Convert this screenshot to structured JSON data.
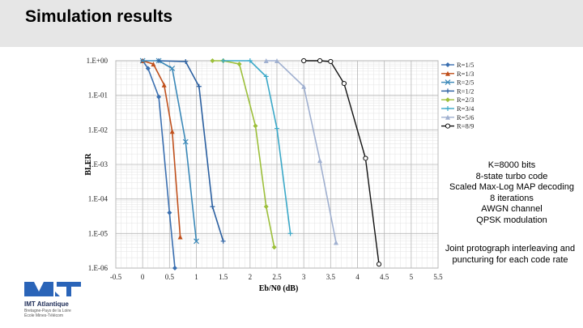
{
  "header": {
    "title": "Simulation results"
  },
  "params": [
    "K=8000 bits",
    "8-state turbo code",
    "Scaled Max-Log MAP decoding",
    "8 iterations",
    "AWGN channel",
    "QPSK modulation"
  ],
  "note": [
    "Joint protograph interleaving and",
    "puncturing for each code rate"
  ],
  "logo": {
    "name": "IMT Atlantique",
    "sub1": "Bretagne-Pays de la Loire",
    "sub2": "École Mines-Télécom"
  },
  "chart_data": {
    "type": "line",
    "xlabel": "Eb/N0 (dB)",
    "ylabel": "BLER",
    "xlim": [
      -0.5,
      5.5
    ],
    "ylim": [
      1e-06,
      1
    ],
    "yscale": "log",
    "grid": true,
    "legend": "top-right",
    "xticks": [
      "-0.5",
      "0",
      "0.5",
      "1",
      "1.5",
      "2",
      "2.5",
      "3",
      "3.5",
      "4",
      "4.5",
      "5",
      "5.5"
    ],
    "yticks": [
      "1.E+00",
      "1.E-01",
      "1.E-02",
      "1.E-03",
      "1.E-04",
      "1.E-05",
      "1.E-06"
    ],
    "series": [
      {
        "name": "R=1/5",
        "color": "#3a6fb0",
        "marker": "diamond",
        "x": [
          0,
          0.1,
          0.3,
          0.5,
          0.6
        ],
        "y": [
          1,
          0.6,
          0.09,
          4e-05,
          1e-06
        ]
      },
      {
        "name": "R=1/3",
        "color": "#c0501c",
        "marker": "triangle",
        "x": [
          0,
          0.2,
          0.4,
          0.55,
          0.7
        ],
        "y": [
          1,
          0.8,
          0.2,
          0.009,
          8e-06
        ]
      },
      {
        "name": "R=2/5",
        "color": "#3a88b8",
        "marker": "x",
        "x": [
          0,
          0.3,
          0.55,
          0.8,
          1.0
        ],
        "y": [
          1,
          1,
          0.6,
          0.0045,
          6e-06
        ]
      },
      {
        "name": "R=1/2",
        "color": "#2a5fa0",
        "marker": "plus",
        "x": [
          0.3,
          0.8,
          1.05,
          1.3,
          1.5
        ],
        "y": [
          1,
          0.95,
          0.18,
          6e-05,
          6e-06
        ]
      },
      {
        "name": "R=2/3",
        "color": "#9cbf3a",
        "marker": "diamond",
        "x": [
          1.3,
          1.5,
          1.8,
          2.1,
          2.3,
          2.45
        ],
        "y": [
          1,
          1,
          0.8,
          0.013,
          6e-05,
          4e-06
        ]
      },
      {
        "name": "R=3/4",
        "color": "#3aa8c8",
        "marker": "plus",
        "x": [
          1.5,
          2.0,
          2.3,
          2.5,
          2.75
        ],
        "y": [
          1,
          1,
          0.35,
          0.011,
          1e-05
        ]
      },
      {
        "name": "R=5/6",
        "color": "#a0b0d0",
        "marker": "triangle",
        "x": [
          2.3,
          2.5,
          3.0,
          3.3,
          3.6
        ],
        "y": [
          1,
          1,
          0.18,
          0.0013,
          5.5e-06
        ]
      },
      {
        "name": "R=8/9",
        "color": "#111111",
        "marker": "circle",
        "x": [
          3.0,
          3.3,
          3.5,
          3.75,
          4.15,
          4.4
        ],
        "y": [
          1,
          1,
          0.95,
          0.22,
          0.0015,
          1.3e-06
        ]
      }
    ]
  }
}
